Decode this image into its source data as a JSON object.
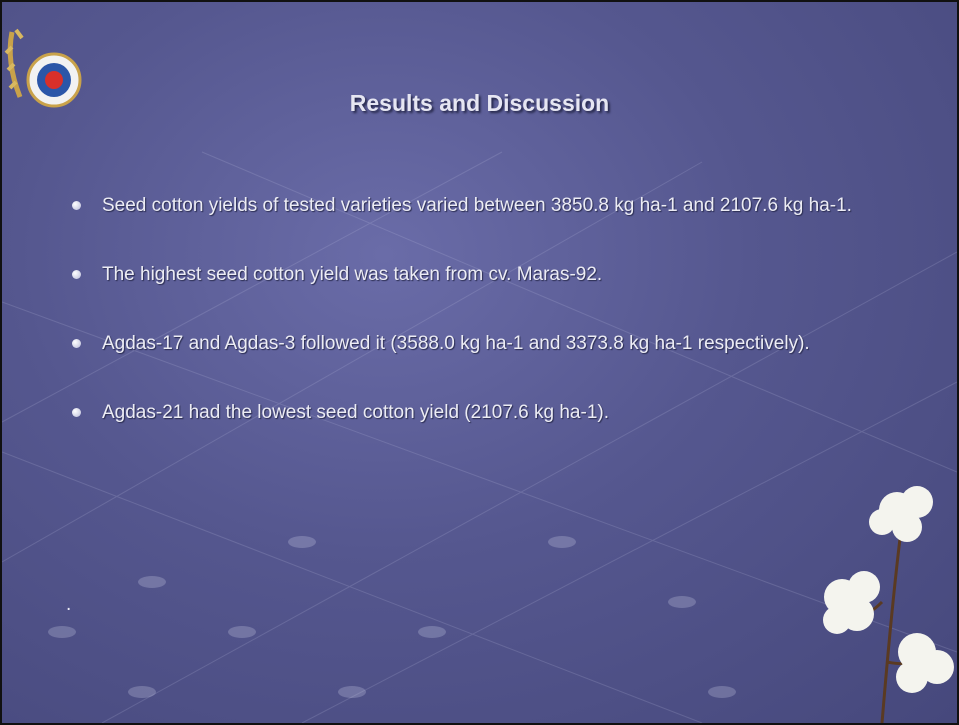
{
  "header": {
    "title": "Results and Discussion"
  },
  "bullets": [
    "Seed cotton yields of tested varieties varied between 3850.8 kg ha-1 and 2107.6 kg ha-1.",
    "The highest seed cotton yield was taken from cv. Maras-92.",
    "Agdas-17 and Agdas-3 followed it (3588.0 kg ha-1 and 3373.8 kg ha-1 respectively).",
    "Agdas-21 had the lowest seed cotton yield (2107.6 kg ha-1)."
  ],
  "footnote": "."
}
